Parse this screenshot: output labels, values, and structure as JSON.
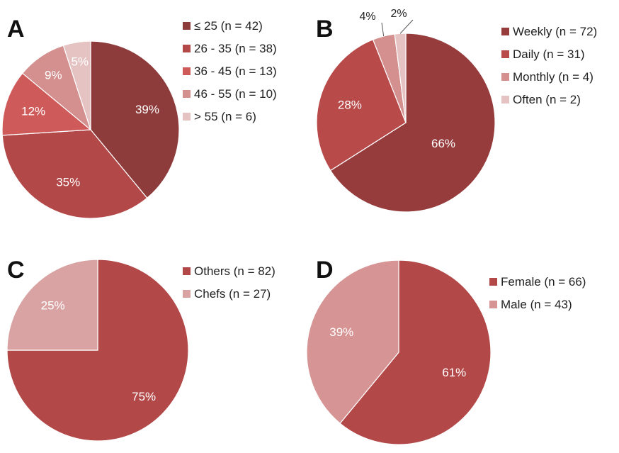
{
  "chart_data": [
    {
      "type": "pie",
      "panel": "A",
      "categories": [
        "≤ 25 (n = 42)",
        "26 - 35 (n = 38)",
        "36 - 45 (n = 13)",
        "46 - 55 (n = 10)",
        "> 55 (n = 6)"
      ],
      "values": [
        39,
        35,
        12,
        9,
        5
      ],
      "labels": [
        "39%",
        "35%",
        "12%",
        "9%",
        "5%"
      ],
      "colors": [
        "#8e3b3b",
        "#b34848",
        "#cf5a5a",
        "#d48f8f",
        "#e6c3c3"
      ],
      "legend_position": "right"
    },
    {
      "type": "pie",
      "panel": "B",
      "categories": [
        "Weekly (n = 72)",
        "Daily (n = 31)",
        "Monthly (n = 4)",
        "Often (n = 2)"
      ],
      "values": [
        66,
        28,
        4,
        2
      ],
      "labels": [
        "66%",
        "28%",
        "4%",
        "2%"
      ],
      "colors": [
        "#963c3c",
        "#b84a4a",
        "#d48f8f",
        "#e6c3c3"
      ],
      "legend_position": "right"
    },
    {
      "type": "pie",
      "panel": "C",
      "categories": [
        "Others (n = 82)",
        "Chefs (n = 27)"
      ],
      "values": [
        75,
        25
      ],
      "labels": [
        "75%",
        "25%"
      ],
      "colors": [
        "#b34848",
        "#d9a3a3"
      ],
      "legend_position": "right"
    },
    {
      "type": "pie",
      "panel": "D",
      "categories": [
        "Female (n = 66)",
        "Male (n = 43)"
      ],
      "values": [
        61,
        39
      ],
      "labels": [
        "61%",
        "39%"
      ],
      "colors": [
        "#b34848",
        "#d69494"
      ],
      "legend_position": "right"
    }
  ]
}
